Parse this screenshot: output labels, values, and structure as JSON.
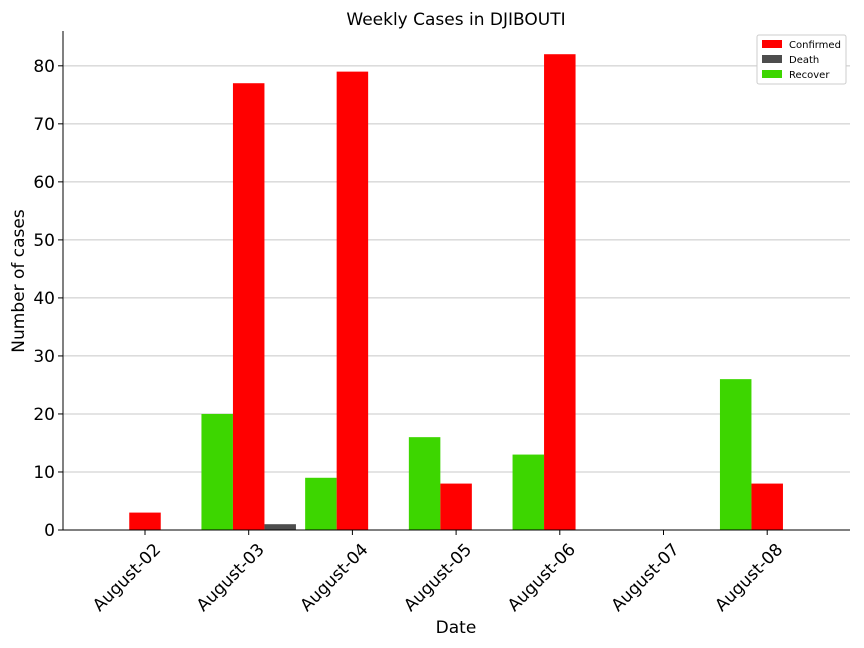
{
  "chart_data": {
    "type": "bar",
    "title": "Weekly Cases in DJIBOUTI",
    "xlabel": "Date",
    "ylabel": "Number of cases",
    "categories": [
      "August-02",
      "August-03",
      "August-04",
      "August-05",
      "August-06",
      "August-07",
      "August-08"
    ],
    "series": [
      {
        "name": "Recover",
        "color": "#3dd600",
        "values": [
          0,
          20,
          9,
          16,
          13,
          0,
          26
        ]
      },
      {
        "name": "Confirmed",
        "color": "#ff0000",
        "values": [
          3,
          77,
          79,
          8,
          82,
          0,
          8
        ]
      },
      {
        "name": "Death",
        "color": "#4d4d4d",
        "values": [
          0,
          1,
          0,
          0,
          0,
          0,
          0
        ]
      }
    ],
    "legend_order": [
      "Confirmed",
      "Death",
      "Recover"
    ],
    "ylim": [
      0,
      86
    ],
    "yticks": [
      0,
      10,
      20,
      30,
      40,
      50,
      60,
      70,
      80
    ],
    "grid": "horizontal",
    "legend_position": "top-right"
  }
}
